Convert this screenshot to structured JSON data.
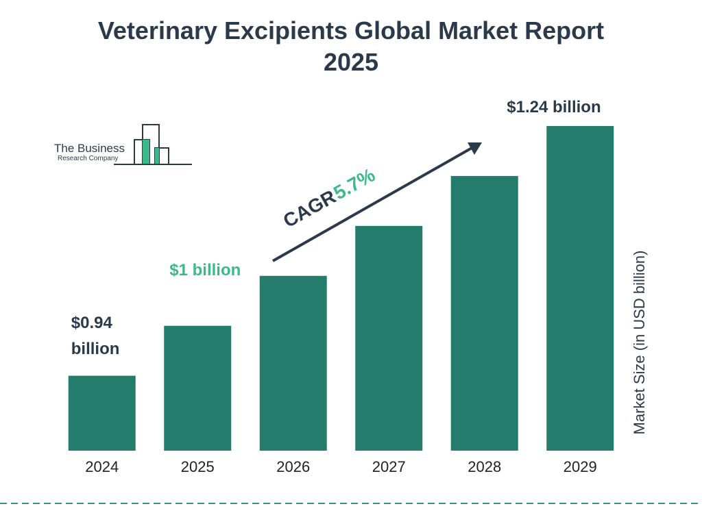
{
  "chart_data": {
    "type": "bar",
    "title": "Veterinary Excipients Global Market Report 2025",
    "categories": [
      "2024",
      "2025",
      "2026",
      "2027",
      "2028",
      "2029"
    ],
    "values": [
      0.94,
      1.0,
      1.06,
      1.12,
      1.18,
      1.24
    ],
    "value_labels": [
      "$0.94 billion",
      "$1 billion",
      null,
      null,
      null,
      "$1.24 billion"
    ],
    "value_label_colors": [
      "#2b3a4a",
      "#3cb98a",
      null,
      null,
      null,
      "#2b3a4a"
    ],
    "color": "#237c6c",
    "y_axis_label": "Market Size (in USD billion)",
    "annotation": {
      "label": "CAGR",
      "value": "5.7%"
    },
    "logo": {
      "line1": "The Business",
      "line2": "Research Company"
    }
  }
}
